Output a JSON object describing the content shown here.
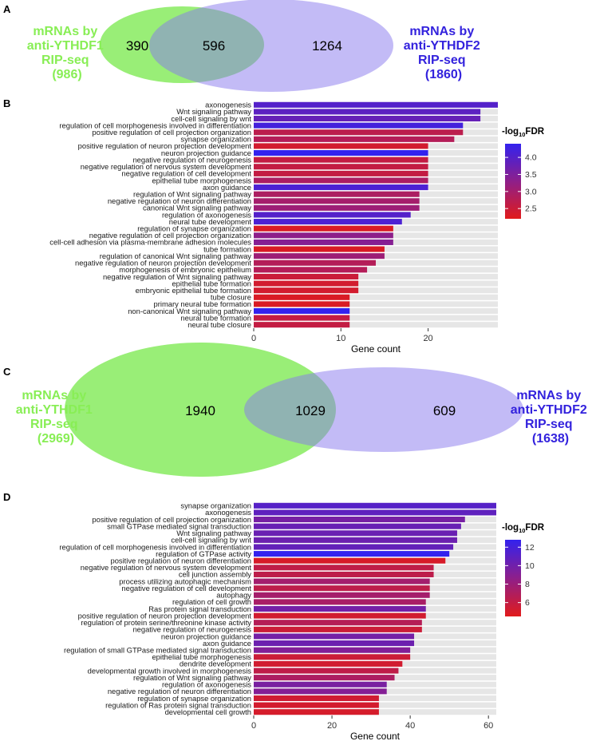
{
  "panels": {
    "A": "A",
    "B": "B",
    "C": "C",
    "D": "D"
  },
  "venn_a": {
    "left": {
      "line1": "mRNAs by",
      "line2": "anti-YTHDF1",
      "line3": "RIP-seq",
      "line4": "(986)",
      "color": "#88ee55"
    },
    "right": {
      "line1": "mRNAs by",
      "line2": "anti-YTHDF2",
      "line3": "RIP-seq",
      "line4": "(1860)",
      "color": "#3322dd"
    },
    "only_left": "390",
    "overlap": "596",
    "only_right": "1264"
  },
  "venn_c": {
    "left": {
      "line1": "mRNAs by",
      "line2": "anti-YTHDF1",
      "line3": "RIP-seq",
      "line4": "(2969)",
      "color": "#88ee55"
    },
    "right": {
      "line1": "mRNAs by",
      "line2": "anti-YTHDF2",
      "line3": "RIP-seq",
      "line4": "(1638)",
      "color": "#3322dd"
    },
    "only_left": "1940",
    "overlap": "1029",
    "only_right": "609"
  },
  "chart_data": [
    {
      "type": "bar",
      "orientation": "horizontal",
      "title": "",
      "xlabel": "Gene count",
      "ylabel": "",
      "xlim": [
        0,
        28
      ],
      "xticks": [
        0,
        10,
        20
      ],
      "legend": {
        "title_main": "-log",
        "title_sub": "10",
        "title_end": "FDR",
        "min": 2.2,
        "max": 4.4,
        "ticks": [
          2.5,
          3.0,
          3.5,
          4.0
        ],
        "tick_labels": [
          "2.5",
          "3.0",
          "3.5",
          "4.0"
        ],
        "low_color": "#e11b1b",
        "high_color": "#3322ee",
        "position": "right"
      },
      "categories": [
        "axonogenesis",
        "Wnt signaling pathway",
        "cell-cell signaling by wnt",
        "regulation of cell morphogenesis involved in differentiation",
        "positive regulation of cell projection organization",
        "synapse organization",
        "positive regulation of neuron projection development",
        "neuron projection guidance",
        "negative regulation of neurogenesis",
        "negative regulation of nervous system development",
        "negative regulation of cell development",
        "epithelial tube morphogenesis",
        "axon guidance",
        "regulation of Wnt signaling pathway",
        "negative regulation of neuron differentiation",
        "canonical Wnt signaling pathway",
        "regulation of axonogenesis",
        "neural tube development",
        "regulation of synapse organization",
        "negative regulation of cell projection organization",
        "cell-cell adhesion via plasma-membrane adhesion molecules",
        "tube formation",
        "regulation of canonical Wnt signaling pathway",
        "negative regulation of neuron projection development",
        "morphogenesis of embryonic epithelium",
        "negative regulation of Wnt signaling pathway",
        "epithelial tube formation",
        "embryonic epithelial tube formation",
        "tube closure",
        "primary neural tube formation",
        "non-canonical Wnt signaling pathway",
        "neural tube formation",
        "neural tube closure"
      ],
      "values": [
        28,
        26,
        26,
        24,
        24,
        23,
        20,
        20,
        20,
        20,
        20,
        20,
        20,
        19,
        19,
        19,
        18,
        17,
        16,
        16,
        16,
        15,
        15,
        14,
        13,
        12,
        12,
        12,
        11,
        11,
        11,
        11,
        11
      ],
      "color_values": [
        4.0,
        3.9,
        3.8,
        4.2,
        2.7,
        2.8,
        2.4,
        4.4,
        2.6,
        2.6,
        2.6,
        2.9,
        4.1,
        2.9,
        3.0,
        3.1,
        4.0,
        4.1,
        2.3,
        3.3,
        3.4,
        2.3,
        3.1,
        2.8,
        2.8,
        2.5,
        2.4,
        2.4,
        2.3,
        2.3,
        4.4,
        2.6,
        2.6
      ]
    },
    {
      "type": "bar",
      "orientation": "horizontal",
      "title": "",
      "xlabel": "Gene count",
      "ylabel": "",
      "xlim": [
        0,
        62
      ],
      "xticks": [
        0,
        20,
        40,
        60
      ],
      "legend": {
        "title_main": "-log",
        "title_sub": "10",
        "title_end": "FDR",
        "min": 4.5,
        "max": 12.8,
        "ticks": [
          6,
          8,
          10,
          12
        ],
        "tick_labels": [
          "6",
          "8",
          "10",
          "12"
        ],
        "low_color": "#e11b1b",
        "high_color": "#3322ee",
        "position": "right"
      },
      "categories": [
        "synapse organization",
        "axonogenesis",
        "positive regulation of cell projection organization",
        "small GTPase mediated signal transduction",
        "Wnt signaling pathway",
        "cell-cell signaling by wnt",
        "regulation of cell morphogenesis involved in differentiation",
        "regulation of GTPase activity",
        "positive regulation of neuron differentiation",
        "negative regulation of nervous system development",
        "cell junction assembly",
        "process utilizing autophagic mechanism",
        "negative regulation of cell development",
        "autophagy",
        "regulation of cell growth",
        "Ras protein signal transduction",
        "positive regulation of neuron projection development",
        "regulation of protein serine/threonine kinase activity",
        "negative regulation of neurogenesis",
        "neuron projection guidance",
        "axon guidance",
        "regulation of small GTPase mediated signal transduction",
        "epithelial tube morphogenesis",
        "dendrite development",
        "developmental growth involved in morphogenesis",
        "regulation of Wnt signaling pathway",
        "regulation of axonogenesis",
        "negative regulation of neuron differentiation",
        "regulation of synapse organization",
        "regulation of Ras protein signal transduction",
        "developmental cell growth"
      ],
      "values": [
        62,
        62,
        54,
        53,
        52,
        52,
        51,
        50,
        49,
        46,
        46,
        45,
        45,
        45,
        44,
        44,
        44,
        43,
        43,
        41,
        41,
        40,
        40,
        38,
        37,
        36,
        34,
        34,
        32,
        32,
        32
      ],
      "color_values": [
        11.2,
        10.8,
        9.7,
        10.4,
        10.3,
        10.2,
        10.6,
        12.8,
        5.0,
        6.2,
        6.3,
        7.6,
        6.3,
        7.5,
        7.3,
        9.8,
        5.3,
        6.7,
        5.6,
        9.8,
        10.2,
        9.2,
        5.6,
        5.3,
        6.2,
        7.1,
        9.6,
        9.1,
        5.4,
        5.2,
        5.1
      ]
    }
  ]
}
